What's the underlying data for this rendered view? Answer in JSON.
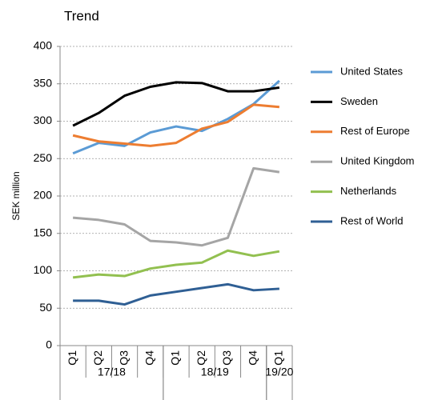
{
  "chart_data": {
    "type": "line",
    "title": "Trend",
    "y_label": "SEK million",
    "categories": [
      "Q1",
      "Q2",
      "Q3",
      "Q4",
      "Q1",
      "Q2",
      "Q3",
      "Q4",
      "Q1"
    ],
    "x_groups": [
      {
        "label": "17/18",
        "size": 4
      },
      {
        "label": "18/19",
        "size": 4
      },
      {
        "label": "19/20",
        "size": 1
      }
    ],
    "series": [
      {
        "name": "United States",
        "color": "#5b9bd5",
        "values": [
          257,
          271,
          267,
          285,
          293,
          287,
          303,
          323,
          354
        ]
      },
      {
        "name": "Sweden",
        "color": "#000000",
        "values": [
          294,
          311,
          334,
          346,
          352,
          351,
          340,
          340,
          345
        ]
      },
      {
        "name": "Rest of Europe",
        "color": "#ed7d31",
        "values": [
          281,
          273,
          270,
          267,
          271,
          290,
          299,
          322,
          319
        ]
      },
      {
        "name": "United Kingdom",
        "color": "#a5a5a5",
        "values": [
          171,
          168,
          162,
          140,
          138,
          134,
          144,
          237,
          232
        ]
      },
      {
        "name": "Netherlands",
        "color": "#92c050",
        "values": [
          91,
          95,
          93,
          103,
          108,
          111,
          127,
          120,
          126
        ]
      },
      {
        "name": "Rest of World",
        "color": "#2f5f94",
        "values": [
          60,
          60,
          55,
          67,
          72,
          77,
          82,
          74,
          76
        ]
      }
    ],
    "ylim": [
      0,
      400
    ],
    "yticks": [
      0,
      50,
      100,
      150,
      200,
      250,
      300,
      350,
      400
    ],
    "grid": true,
    "legend": "right"
  }
}
